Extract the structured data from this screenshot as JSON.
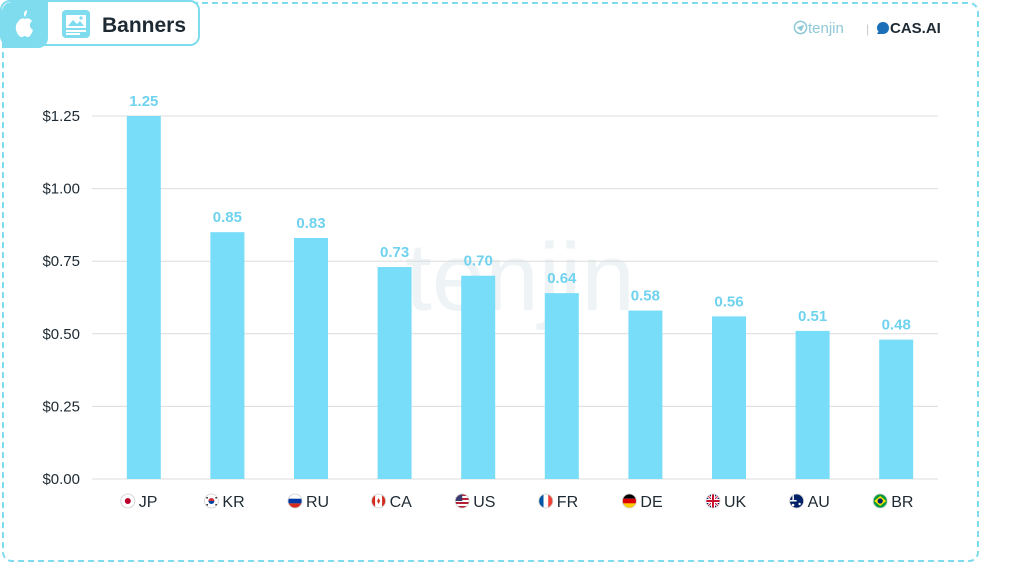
{
  "header": {
    "platform_icon": "apple-icon",
    "format_icon": "image-banner-icon",
    "title": "Banners"
  },
  "brands": {
    "tenjin": "tenjin",
    "separator": "|",
    "cas": "CAS.AI"
  },
  "watermark": "tenjin",
  "colors": {
    "bar": "#78ddf9",
    "label": "#6fd2ee",
    "frame": "#7fdcee",
    "text": "#1e2a33"
  },
  "chart_data": {
    "type": "bar",
    "title": "",
    "xlabel": "",
    "ylabel": "",
    "ylim": [
      0,
      1.25
    ],
    "yticks": [
      "$0.00",
      "$0.25",
      "$0.50",
      "$0.75",
      "$1.00",
      "$1.25"
    ],
    "ytick_values": [
      0,
      0.25,
      0.5,
      0.75,
      1.0,
      1.25
    ],
    "grid": true,
    "categories": [
      "JP",
      "KR",
      "RU",
      "CA",
      "US",
      "FR",
      "DE",
      "UK",
      "AU",
      "BR"
    ],
    "flags": [
      "japan-flag-icon",
      "south-korea-flag-icon",
      "russia-flag-icon",
      "canada-flag-icon",
      "usa-flag-icon",
      "france-flag-icon",
      "germany-flag-icon",
      "uk-flag-icon",
      "australia-flag-icon",
      "brazil-flag-icon"
    ],
    "values": [
      1.25,
      0.85,
      0.83,
      0.73,
      0.7,
      0.64,
      0.58,
      0.56,
      0.51,
      0.48
    ],
    "value_labels": [
      "1.25",
      "0.85",
      "0.83",
      "0.73",
      "0.70",
      "0.64",
      "0.58",
      "0.56",
      "0.51",
      "0.48"
    ]
  }
}
